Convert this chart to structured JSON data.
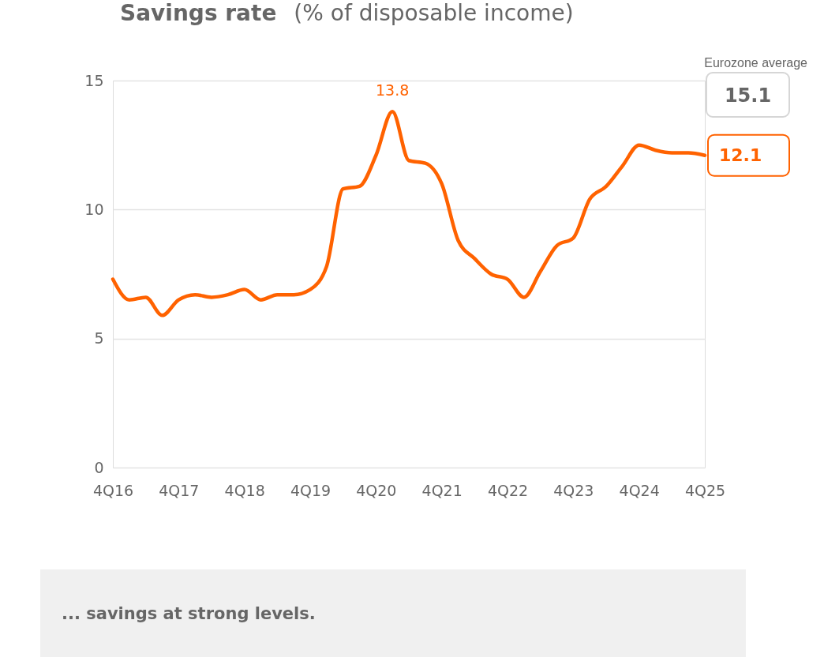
{
  "chart_data": {
    "type": "line",
    "title": "Savings rate",
    "subtitle": "(% of disposable income)",
    "categories": [
      "4Q16",
      null,
      null,
      null,
      "4Q17",
      null,
      null,
      null,
      "4Q18",
      null,
      null,
      null,
      "4Q19",
      null,
      null,
      null,
      "4Q20",
      null,
      null,
      null,
      "4Q21",
      null,
      null,
      null,
      "4Q22",
      null,
      null,
      null,
      "4Q23",
      null,
      null,
      null,
      "4Q24",
      null,
      null,
      null,
      "4Q25"
    ],
    "series": [
      {
        "color": "#ff6200",
        "values": [
          7.3,
          6.5,
          6.6,
          5.9,
          6.5,
          6.7,
          6.6,
          6.7,
          6.9,
          6.5,
          6.7,
          6.7,
          6.9,
          7.8,
          10.8,
          10.9,
          12.1,
          13.8,
          11.9,
          11.8,
          11.0,
          8.8,
          8.1,
          7.5,
          7.3,
          6.6,
          7.6,
          8.6,
          8.9,
          10.4,
          10.9,
          11.7,
          12.5,
          12.3,
          12.2,
          12.2,
          12.1
        ],
        "value_labels": [
          null,
          null,
          null,
          null,
          null,
          null,
          null,
          null,
          null,
          null,
          null,
          null,
          null,
          null,
          null,
          null,
          null,
          "13.8",
          null,
          null,
          null,
          null,
          null,
          null,
          null,
          null,
          null,
          null,
          null,
          null,
          null,
          null,
          null,
          null,
          null,
          null,
          "12.1"
        ]
      }
    ],
    "ylim": [
      0,
      15
    ],
    "yticks": [
      0,
      5,
      10,
      15
    ],
    "grid": "y",
    "marker": "none",
    "line_style": "solid",
    "annotations": [
      "Eurozone average",
      "15.1",
      "... savings at strong levels."
    ]
  }
}
